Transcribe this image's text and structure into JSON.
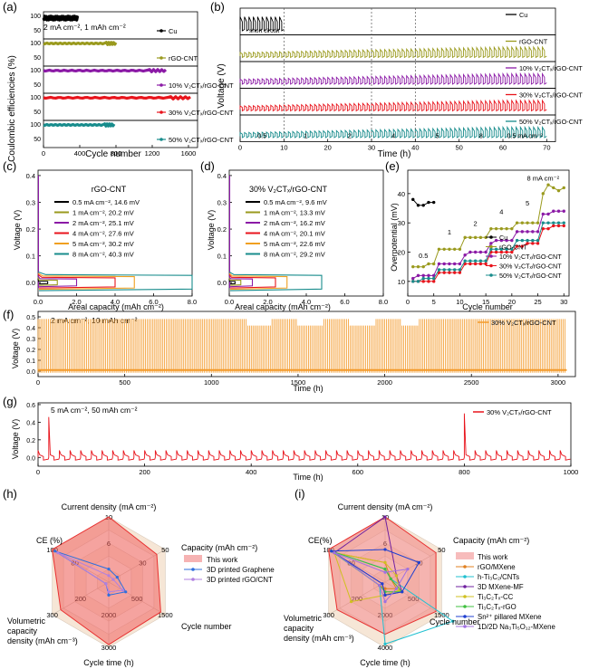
{
  "panels": {
    "a": {
      "label": "(a)",
      "ylabel": "Coulombic efficiencies (%)",
      "xlabel": "Cycle number",
      "note": "2 mA cm⁻², 1 mAh cm⁻²",
      "xticks": [
        "0",
        "400",
        "800",
        "1200",
        "1600"
      ],
      "rows": [
        {
          "name": "Cu",
          "color": "#000000",
          "cycles": 380,
          "yticks": [
            "100",
            "50"
          ]
        },
        {
          "name": "rGO-CNT",
          "color": "#9a9a1e",
          "cycles": 800,
          "yticks": [
            "100",
            "50"
          ]
        },
        {
          "name": "10% V₂CTₓ/rGO-CNT",
          "color": "#8b1aa6",
          "cycles": 1350,
          "yticks": [
            "100",
            "50"
          ]
        },
        {
          "name": "30% V₂CTₓ/rGO-CNT",
          "color": "#e8141c",
          "cycles": 1620,
          "yticks": [
            "100",
            "50"
          ]
        },
        {
          "name": "50% V₂CTₓ/rGO-CNT",
          "color": "#188c8c",
          "cycles": 780,
          "yticks": [
            "100",
            "50"
          ]
        }
      ]
    },
    "b": {
      "label": "(b)",
      "ylabel": "Voltage (V)",
      "xlabel": "Time (h)",
      "xticks": [
        "0",
        "10",
        "20",
        "30",
        "40",
        "50",
        "60",
        "70"
      ],
      "short": "short circuit",
      "rates": [
        "0.5",
        "1",
        "2",
        "4",
        "5",
        "8",
        "0.5 mA cm⁻²"
      ],
      "rows": [
        {
          "name": "Cu",
          "color": "#000000"
        },
        {
          "name": "rGO-CNT",
          "color": "#9a9a1e"
        },
        {
          "name": "10% V₂CTₓ/rGO-CNT",
          "color": "#8b1aa6"
        },
        {
          "name": "30% V₂CTₓ/rGO-CNT",
          "color": "#e8141c"
        },
        {
          "name": "50% V₂CTₓ/rGO-CNT",
          "color": "#188c8c"
        }
      ]
    },
    "c": {
      "label": "(c)",
      "title": "rGO-CNT",
      "ylabel": "Voltage (V)",
      "xlabel": "Areal capacity (mAh cm⁻²)",
      "xticks": [
        "0.0",
        "2.0",
        "4.0",
        "6.0",
        "8.0"
      ],
      "yticks": [
        "0.0",
        "0.1",
        "0.2",
        "0.3",
        "0.4"
      ],
      "legend": [
        {
          "text": "0.5 mA cm⁻², 14.6 mV",
          "color": "#000000"
        },
        {
          "text": "1 mA cm⁻², 20.2 mV",
          "color": "#9a9a1e"
        },
        {
          "text": "2 mA cm⁻², 25.1 mV",
          "color": "#8b1aa6"
        },
        {
          "text": "4 mA cm⁻², 27.6 mV",
          "color": "#e8141c"
        },
        {
          "text": "5 mA cm⁻², 30.2 mV",
          "color": "#f0a020"
        },
        {
          "text": "8 mA cm⁻², 40.3 mV",
          "color": "#188c8c"
        }
      ]
    },
    "d": {
      "label": "(d)",
      "title": "30% V₂CTₓ/rGO-CNT",
      "ylabel": "Voltage (V)",
      "xlabel": "Areal capacity (mAh cm⁻²)",
      "xticks": [
        "0.0",
        "2.0",
        "4.0",
        "6.0",
        "8.0"
      ],
      "yticks": [
        "0.0",
        "0.1",
        "0.2",
        "0.3",
        "0.4"
      ],
      "legend": [
        {
          "text": "0.5 mA cm⁻²,   9.6 mV",
          "color": "#000000"
        },
        {
          "text": "1 mA cm⁻², 13.3 mV",
          "color": "#9a9a1e"
        },
        {
          "text": "2 mA cm⁻², 16.2 mV",
          "color": "#8b1aa6"
        },
        {
          "text": "4 mA cm⁻², 20.1 mV",
          "color": "#e8141c"
        },
        {
          "text": "5 mA cm⁻², 22.6 mV",
          "color": "#f0a020"
        },
        {
          "text": "8 mA cm⁻², 29.2 mV",
          "color": "#188c8c"
        }
      ]
    },
    "e": {
      "label": "(e)",
      "ylabel": "Overpotential (mV)",
      "xlabel": "Cycle number",
      "xticks": [
        "0",
        "5",
        "10",
        "15",
        "20",
        "25",
        "30"
      ],
      "yticks": [
        "10",
        "20",
        "30",
        "40"
      ],
      "rate_labels": [
        "0.5",
        "1",
        "2",
        "4",
        "5",
        "8 mA cm⁻²"
      ],
      "legend": [
        {
          "text": "Cu",
          "color": "#000000"
        },
        {
          "text": "rGO-CNT",
          "color": "#9a9a1e"
        },
        {
          "text": "10% V₂CTₓ/rGO-CNT",
          "color": "#8b1aa6"
        },
        {
          "text": "30% V₂CTₓ/rGO-CNT",
          "color": "#e8141c"
        },
        {
          "text": "50% V₂CTₓ/rGO-CNT",
          "color": "#188c8c"
        }
      ]
    },
    "f": {
      "label": "(f)",
      "note": "2 mA cm⁻², 10 mAh cm⁻²",
      "legend": "30% V₂CTₓ/rGO-CNT",
      "color": "#f39a2a",
      "ylabel": "Voltage (V)",
      "xlabel": "Time (h)",
      "xticks": [
        "0",
        "500",
        "1000",
        "1500",
        "2000",
        "2500",
        "3000"
      ],
      "yticks": [
        "0.0",
        "0.1",
        "0.2",
        "0.3",
        "0.4",
        "0.5"
      ]
    },
    "g": {
      "label": "(g)",
      "note": "5 mA cm⁻², 50 mAh cm⁻²",
      "legend": "30% V₂CTₓ/rGO-CNT",
      "color": "#e8141c",
      "ylabel": "Voltage (V)",
      "xlabel": "Time (h)",
      "xticks": [
        "0",
        "200",
        "400",
        "600",
        "800",
        "1000"
      ],
      "yticks": [
        "0.0",
        "0.2",
        "0.4",
        "0.6"
      ]
    },
    "h": {
      "label": "(h)",
      "axes": [
        "Current density (mA cm⁻²)",
        "Capacity (mAh cm⁻²)",
        "Cycle number",
        "Cycle time (h)",
        "Volumetric capacity density (mAh cm⁻³)",
        "CE (%)"
      ],
      "legend": [
        {
          "text": "This work",
          "color": "#f08080"
        },
        {
          "text": "3D printed Graphene",
          "color": "#2f6fdd"
        },
        {
          "text": "3D printed rGO/CNT",
          "color": "#b080e0"
        }
      ]
    },
    "i": {
      "label": "(i)",
      "axes": [
        "Current density (mA cm⁻²)",
        "Capacity (mAh cm⁻²)",
        "Cycle number",
        "Cycle time (h)",
        "Volumetric capacity density (mAh cm⁻³)",
        "CE(%)"
      ],
      "legend": [
        {
          "text": "This work",
          "color": "#f4a0a0"
        },
        {
          "text": "rGO/MXene",
          "color": "#e08020"
        },
        {
          "text": "h-Ti₃C₂/CNTs",
          "color": "#20c0d0"
        },
        {
          "text": "3D MXene-MF",
          "color": "#7020a0"
        },
        {
          "text": "Ti₃C₂Tₓ-CC",
          "color": "#d0c020"
        },
        {
          "text": "Ti₃C₂Tₓ-rGO",
          "color": "#40c040"
        },
        {
          "text": "Sn²⁺ pillared MXene",
          "color": "#2040d0"
        },
        {
          "text": "1D/2D Na₃Ti₅O₁₂-MXene",
          "color": "#a070e0"
        }
      ]
    }
  },
  "chart_data": [
    {
      "type": "scatter",
      "title": "(a)",
      "xlabel": "Cycle number",
      "ylabel": "Coulombic efficiencies (%)",
      "series": [
        {
          "name": "Cu",
          "x": [
            0,
            380
          ],
          "values": [
            98,
            93
          ]
        },
        {
          "name": "rGO-CNT",
          "x": [
            0,
            800
          ],
          "values": [
            98,
            96
          ]
        },
        {
          "name": "10% V₂CTₓ/rGO-CNT",
          "x": [
            0,
            1350
          ],
          "values": [
            99,
            99
          ]
        },
        {
          "name": "30% V₂CTₓ/rGO-CNT",
          "x": [
            0,
            1620
          ],
          "values": [
            99.5,
            99.5
          ]
        },
        {
          "name": "50% V₂CTₓ/rGO-CNT",
          "x": [
            0,
            780
          ],
          "values": [
            98.5,
            98
          ]
        }
      ],
      "xlim": [
        0,
        1700
      ]
    },
    {
      "type": "line",
      "title": "(e)",
      "xlabel": "Cycle number",
      "ylabel": "Overpotential (mV)",
      "ylim": [
        5,
        48
      ],
      "xlim": [
        0,
        30
      ],
      "series": [
        {
          "name": "Cu",
          "x": [
            1,
            2,
            3,
            4,
            5
          ],
          "values": [
            38,
            36,
            36,
            37,
            37
          ]
        },
        {
          "name": "rGO-CNT",
          "x": [
            1,
            2,
            3,
            4,
            5,
            6,
            7,
            8,
            9,
            10,
            11,
            12,
            13,
            14,
            15,
            16,
            17,
            18,
            19,
            20,
            21,
            22,
            23,
            24,
            25,
            26,
            27,
            28,
            29,
            30
          ],
          "values": [
            15,
            15,
            15,
            16,
            16,
            21,
            21,
            21,
            21,
            21,
            25,
            25,
            25,
            25,
            25,
            28,
            28,
            28,
            28,
            28,
            30,
            30,
            30,
            30,
            30,
            40,
            43,
            42,
            41,
            42
          ]
        },
        {
          "name": "10% V₂CTₓ/rGO-CNT",
          "x": [
            1,
            2,
            3,
            4,
            5,
            6,
            7,
            8,
            9,
            10,
            11,
            12,
            13,
            14,
            15,
            16,
            17,
            18,
            19,
            20,
            21,
            22,
            23,
            24,
            25,
            26,
            27,
            28,
            29,
            30
          ],
          "values": [
            11,
            12,
            12,
            12,
            12,
            16,
            16,
            16,
            16,
            16,
            19,
            20,
            20,
            20,
            20,
            23,
            24,
            24,
            24,
            24,
            27,
            27,
            27,
            27,
            27,
            33,
            33,
            34,
            34,
            34
          ]
        },
        {
          "name": "30% V₂CTₓ/rGO-CNT",
          "x": [
            1,
            2,
            3,
            4,
            5,
            6,
            7,
            8,
            9,
            10,
            11,
            12,
            13,
            14,
            15,
            16,
            17,
            18,
            19,
            20,
            21,
            22,
            23,
            24,
            25,
            26,
            27,
            28,
            29,
            30
          ],
          "values": [
            10,
            10,
            10,
            10,
            10,
            13,
            13,
            13,
            13,
            13,
            16,
            16,
            16,
            16,
            16,
            20,
            20,
            20,
            20,
            20,
            22,
            22,
            23,
            23,
            23,
            28,
            28,
            29,
            29,
            29
          ]
        },
        {
          "name": "50% V₂CTₓ/rGO-CNT",
          "x": [
            1,
            2,
            3,
            4,
            5,
            6,
            7,
            8,
            9,
            10,
            11,
            12,
            13,
            14,
            15,
            16,
            17,
            18,
            19,
            20,
            21,
            22,
            23,
            24,
            25,
            26,
            27,
            28,
            29,
            30
          ],
          "values": [
            10,
            10,
            11,
            11,
            11,
            14,
            14,
            14,
            14,
            14,
            17,
            17,
            17,
            17,
            17,
            21,
            21,
            21,
            21,
            21,
            24,
            24,
            24,
            24,
            24,
            30,
            30,
            30,
            30,
            30
          ]
        }
      ]
    },
    {
      "type": "line",
      "title": "(c)",
      "xlabel": "Areal capacity (mAh cm⁻²)",
      "ylabel": "Voltage (V)",
      "xlim": [
        0,
        8
      ],
      "ylim": [
        -0.05,
        0.42
      ],
      "series": [
        {
          "name": "0.5 mA cm⁻², 14.6 mV",
          "values": [
            0.0146
          ]
        },
        {
          "name": "1 mA cm⁻², 20.2 mV",
          "values": [
            0.0202
          ]
        },
        {
          "name": "2 mA cm⁻², 25.1 mV",
          "values": [
            0.0251
          ]
        },
        {
          "name": "4 mA cm⁻², 27.6 mV",
          "values": [
            0.0276
          ]
        },
        {
          "name": "5 mA cm⁻², 30.2 mV",
          "values": [
            0.0302
          ]
        },
        {
          "name": "8 mA cm⁻², 40.3 mV",
          "values": [
            0.0403
          ]
        }
      ]
    },
    {
      "type": "line",
      "title": "(d)",
      "xlabel": "Areal capacity (mAh cm⁻²)",
      "ylabel": "Voltage (V)",
      "xlim": [
        0,
        8
      ],
      "ylim": [
        -0.05,
        0.42
      ],
      "series": [
        {
          "name": "0.5 mA cm⁻², 9.6 mV",
          "values": [
            0.0096
          ]
        },
        {
          "name": "1 mA cm⁻², 13.3 mV",
          "values": [
            0.0133
          ]
        },
        {
          "name": "2 mA cm⁻², 16.2 mV",
          "values": [
            0.0162
          ]
        },
        {
          "name": "4 mA cm⁻², 20.1 mV",
          "values": [
            0.0201
          ]
        },
        {
          "name": "5 mA cm⁻², 22.6 mV",
          "values": [
            0.0226
          ]
        },
        {
          "name": "8 mA cm⁻², 29.2 mV",
          "values": [
            0.0292
          ]
        }
      ]
    }
  ]
}
